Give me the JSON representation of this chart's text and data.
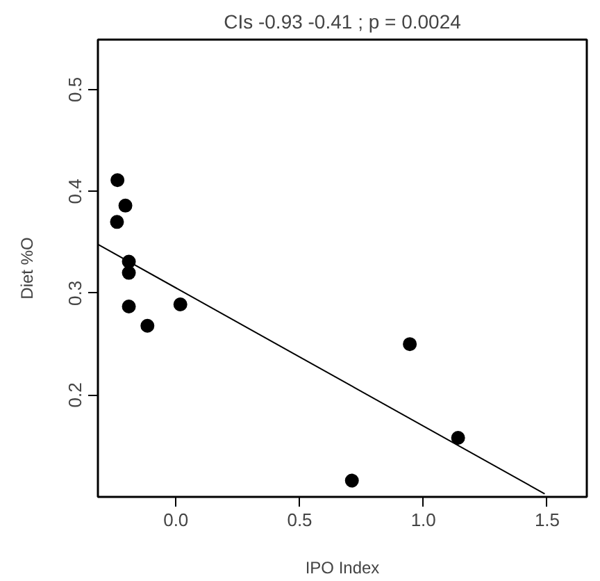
{
  "chart_data": {
    "type": "scatter",
    "title": "CIs -0.93 -0.41 ; p = 0.0024",
    "xlabel": "IPO Index",
    "ylabel": "Diet %O",
    "xlim": [
      -0.315,
      1.66
    ],
    "ylim": [
      0.1,
      0.549
    ],
    "xticks": [
      {
        "value": 0,
        "label": "0.0"
      },
      0.5,
      {
        "value": 1,
        "label": "1.0"
      },
      1.5
    ],
    "yticks": [
      0.2,
      0.3,
      0.4,
      0.5
    ],
    "grid": false,
    "marker": "circle",
    "series": [
      {
        "color": "#000000",
        "x": [
          -0.236,
          -0.204,
          -0.238,
          -0.19,
          -0.19,
          -0.19,
          0.018,
          -0.115,
          0.945,
          1.14,
          0.711
        ],
        "values": [
          0.411,
          0.386,
          0.37,
          0.331,
          0.32,
          0.287,
          0.289,
          0.268,
          0.25,
          0.158,
          0.116
        ]
      },
      {
        "type": "line",
        "marker": "none",
        "color": "#000000",
        "x": [
          -0.315,
          1.49
        ],
        "values": [
          0.348,
          0.103
        ]
      }
    ]
  }
}
